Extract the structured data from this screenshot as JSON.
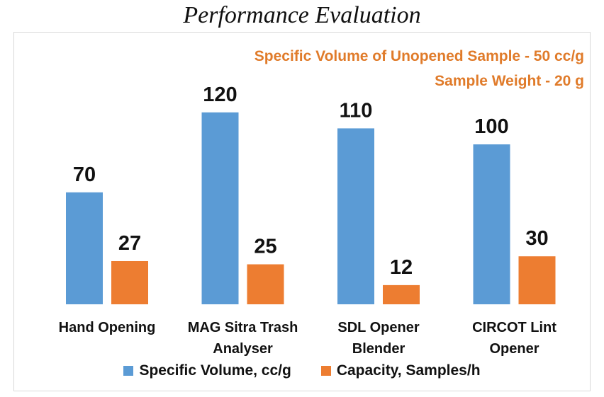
{
  "chart_data": {
    "type": "bar",
    "title": "Performance Evaluation",
    "annotations": [
      "Specific Volume of Unopened Sample - 50 cc/g",
      "Sample Weight - 20 g"
    ],
    "categories": [
      [
        "Hand Opening"
      ],
      [
        "MAG Sitra Trash",
        "Analyser"
      ],
      [
        "SDL Opener",
        "Blender"
      ],
      [
        "CIRCOT Lint",
        "Opener"
      ]
    ],
    "series": [
      {
        "name": "Specific Volume, cc/g",
        "color": "#5b9bd5",
        "values": [
          70,
          120,
          110,
          100
        ]
      },
      {
        "name": "Capacity, Samples/h",
        "color": "#ed7d31",
        "values": [
          27,
          25,
          12,
          30
        ]
      }
    ],
    "ylim": [
      0,
      140
    ],
    "xlabel": "",
    "ylabel": "",
    "grid": false,
    "legend": "bottom"
  }
}
